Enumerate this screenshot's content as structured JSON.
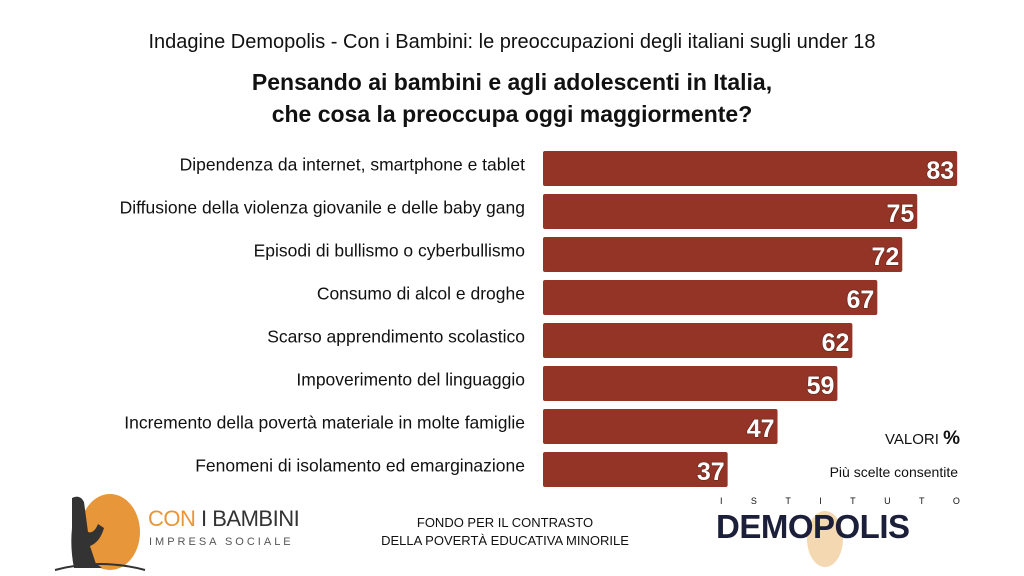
{
  "header": {
    "supertitle": "Indagine Demopolis - Con i Bambini: le preoccupazioni degli italiani sugli under 18",
    "question_line1": "Pensando ai bambini e agli adolescenti in Italia,",
    "question_line2": "che cosa la preoccupa oggi maggiormente?"
  },
  "chart_data": {
    "type": "bar",
    "orientation": "horizontal",
    "categories": [
      "Dipendenza da internet, smartphone e tablet",
      "Diffusione della violenza giovanile e delle baby gang",
      "Episodi di bullismo o cyberbullismo",
      "Consumo di alcol e droghe",
      "Scarso apprendimento scolastico",
      "Impoverimento del linguaggio",
      "Incremento della povertà materiale in molte famiglie",
      "Fenomeni di isolamento ed emarginazione"
    ],
    "values": [
      83,
      75,
      72,
      67,
      62,
      59,
      47,
      37
    ],
    "bar_color": "#933426",
    "xlim": [
      0,
      100
    ],
    "grid": false
  },
  "notes": {
    "valori": "VALORI",
    "percent": "%",
    "piu": "Più scelte consentite"
  },
  "footer": {
    "con": "CON",
    "ibambini": " I BAMBINI",
    "impresa": "IMPRESA SOCIALE",
    "fondo1": "FONDO PER IL CONTRASTO",
    "fondo2": "DELLA POVERTÀ EDUCATIVA MINORILE",
    "istituto": [
      "I",
      "S",
      "T",
      "I",
      "T",
      "U",
      "T",
      "O"
    ],
    "demopolis": "DEMOPOLIS"
  }
}
